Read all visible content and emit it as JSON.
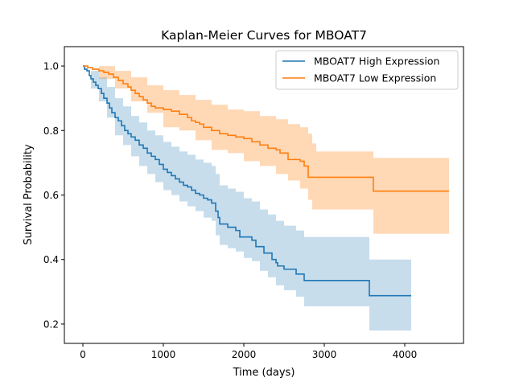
{
  "chart_data": {
    "type": "line",
    "title": "Kaplan-Meier Curves for MBOAT7",
    "xlabel": "Time (days)",
    "ylabel": "Survival Probability",
    "xlim": [
      -230,
      4730
    ],
    "ylim": [
      0.14,
      1.06
    ],
    "xticks": [
      0,
      1000,
      2000,
      3000,
      4000
    ],
    "yticks": [
      0.2,
      0.4,
      0.6,
      0.8,
      1.0
    ],
    "grid": false,
    "legend_position": "top-right",
    "series": [
      {
        "name": "MBOAT7 High Expression",
        "color": "#1f77b4",
        "ci_alpha": 0.25,
        "steps": [
          [
            0,
            1.0
          ],
          [
            20,
            0.99
          ],
          [
            50,
            0.985
          ],
          [
            80,
            0.97
          ],
          [
            100,
            0.96
          ],
          [
            130,
            0.95
          ],
          [
            160,
            0.94
          ],
          [
            190,
            0.93
          ],
          [
            230,
            0.915
          ],
          [
            260,
            0.9
          ],
          [
            300,
            0.885
          ],
          [
            330,
            0.87
          ],
          [
            360,
            0.855
          ],
          [
            400,
            0.84
          ],
          [
            440,
            0.83
          ],
          [
            480,
            0.815
          ],
          [
            520,
            0.8
          ],
          [
            560,
            0.79
          ],
          [
            600,
            0.78
          ],
          [
            650,
            0.77
          ],
          [
            700,
            0.755
          ],
          [
            750,
            0.745
          ],
          [
            800,
            0.73
          ],
          [
            850,
            0.72
          ],
          [
            900,
            0.71
          ],
          [
            950,
            0.695
          ],
          [
            1000,
            0.68
          ],
          [
            1050,
            0.67
          ],
          [
            1100,
            0.66
          ],
          [
            1150,
            0.65
          ],
          [
            1200,
            0.64
          ],
          [
            1250,
            0.63
          ],
          [
            1300,
            0.625
          ],
          [
            1350,
            0.615
          ],
          [
            1400,
            0.605
          ],
          [
            1450,
            0.6
          ],
          [
            1500,
            0.59
          ],
          [
            1550,
            0.585
          ],
          [
            1600,
            0.575
          ],
          [
            1650,
            0.55
          ],
          [
            1680,
            0.53
          ],
          [
            1700,
            0.51
          ],
          [
            1800,
            0.5
          ],
          [
            1900,
            0.49
          ],
          [
            1950,
            0.47
          ],
          [
            2100,
            0.46
          ],
          [
            2150,
            0.44
          ],
          [
            2250,
            0.42
          ],
          [
            2350,
            0.4
          ],
          [
            2400,
            0.39
          ],
          [
            2420,
            0.38
          ],
          [
            2500,
            0.37
          ],
          [
            2650,
            0.355
          ],
          [
            2750,
            0.335
          ],
          [
            3550,
            0.335
          ],
          [
            3560,
            0.288
          ],
          [
            4080,
            0.288
          ]
        ],
        "ci_upper": [
          [
            0,
            1.0
          ],
          [
            100,
            0.985
          ],
          [
            200,
            0.965
          ],
          [
            300,
            0.935
          ],
          [
            400,
            0.9
          ],
          [
            500,
            0.875
          ],
          [
            600,
            0.845
          ],
          [
            700,
            0.825
          ],
          [
            800,
            0.8
          ],
          [
            900,
            0.785
          ],
          [
            1000,
            0.765
          ],
          [
            1100,
            0.75
          ],
          [
            1200,
            0.735
          ],
          [
            1300,
            0.725
          ],
          [
            1400,
            0.71
          ],
          [
            1500,
            0.7
          ],
          [
            1600,
            0.69
          ],
          [
            1650,
            0.665
          ],
          [
            1700,
            0.63
          ],
          [
            1800,
            0.62
          ],
          [
            1900,
            0.61
          ],
          [
            2000,
            0.59
          ],
          [
            2100,
            0.58
          ],
          [
            2200,
            0.555
          ],
          [
            2300,
            0.54
          ],
          [
            2400,
            0.52
          ],
          [
            2500,
            0.505
          ],
          [
            2650,
            0.49
          ],
          [
            2750,
            0.47
          ],
          [
            3550,
            0.47
          ],
          [
            3560,
            0.4
          ],
          [
            4080,
            0.4
          ]
        ],
        "ci_lower": [
          [
            0,
            1.0
          ],
          [
            100,
            0.93
          ],
          [
            200,
            0.89
          ],
          [
            300,
            0.84
          ],
          [
            400,
            0.785
          ],
          [
            500,
            0.755
          ],
          [
            600,
            0.72
          ],
          [
            700,
            0.69
          ],
          [
            800,
            0.665
          ],
          [
            900,
            0.64
          ],
          [
            1000,
            0.615
          ],
          [
            1100,
            0.6
          ],
          [
            1200,
            0.58
          ],
          [
            1300,
            0.565
          ],
          [
            1400,
            0.55
          ],
          [
            1500,
            0.53
          ],
          [
            1600,
            0.52
          ],
          [
            1650,
            0.475
          ],
          [
            1700,
            0.445
          ],
          [
            1800,
            0.435
          ],
          [
            1900,
            0.425
          ],
          [
            2000,
            0.405
          ],
          [
            2100,
            0.395
          ],
          [
            2200,
            0.365
          ],
          [
            2300,
            0.345
          ],
          [
            2400,
            0.32
          ],
          [
            2500,
            0.305
          ],
          [
            2650,
            0.285
          ],
          [
            2750,
            0.255
          ],
          [
            3550,
            0.255
          ],
          [
            3560,
            0.18
          ],
          [
            4080,
            0.18
          ]
        ]
      },
      {
        "name": "MBOAT7 Low Expression",
        "color": "#ff7f0e",
        "ci_alpha": 0.3,
        "steps": [
          [
            0,
            1.0
          ],
          [
            60,
            0.995
          ],
          [
            120,
            0.99
          ],
          [
            200,
            0.985
          ],
          [
            260,
            0.98
          ],
          [
            320,
            0.975
          ],
          [
            380,
            0.965
          ],
          [
            440,
            0.955
          ],
          [
            500,
            0.945
          ],
          [
            560,
            0.935
          ],
          [
            600,
            0.925
          ],
          [
            650,
            0.915
          ],
          [
            700,
            0.905
          ],
          [
            750,
            0.895
          ],
          [
            800,
            0.885
          ],
          [
            850,
            0.875
          ],
          [
            900,
            0.87
          ],
          [
            1000,
            0.865
          ],
          [
            1100,
            0.86
          ],
          [
            1200,
            0.85
          ],
          [
            1300,
            0.84
          ],
          [
            1350,
            0.83
          ],
          [
            1400,
            0.825
          ],
          [
            1450,
            0.82
          ],
          [
            1500,
            0.81
          ],
          [
            1600,
            0.8
          ],
          [
            1700,
            0.79
          ],
          [
            1800,
            0.785
          ],
          [
            1900,
            0.78
          ],
          [
            2000,
            0.775
          ],
          [
            2100,
            0.765
          ],
          [
            2200,
            0.755
          ],
          [
            2300,
            0.745
          ],
          [
            2400,
            0.74
          ],
          [
            2450,
            0.73
          ],
          [
            2550,
            0.71
          ],
          [
            2700,
            0.705
          ],
          [
            2750,
            0.69
          ],
          [
            2800,
            0.655
          ],
          [
            3600,
            0.655
          ],
          [
            3610,
            0.612
          ],
          [
            4550,
            0.612
          ]
        ],
        "ci_upper": [
          [
            0,
            1.0
          ],
          [
            200,
            1.0
          ],
          [
            400,
            0.985
          ],
          [
            600,
            0.965
          ],
          [
            800,
            0.94
          ],
          [
            1000,
            0.925
          ],
          [
            1200,
            0.91
          ],
          [
            1400,
            0.895
          ],
          [
            1600,
            0.88
          ],
          [
            1800,
            0.865
          ],
          [
            2000,
            0.86
          ],
          [
            2200,
            0.845
          ],
          [
            2400,
            0.835
          ],
          [
            2550,
            0.82
          ],
          [
            2700,
            0.81
          ],
          [
            2800,
            0.79
          ],
          [
            2850,
            0.76
          ],
          [
            2900,
            0.735
          ],
          [
            3600,
            0.735
          ],
          [
            3610,
            0.715
          ],
          [
            4550,
            0.715
          ]
        ],
        "ci_lower": [
          [
            0,
            1.0
          ],
          [
            200,
            0.96
          ],
          [
            400,
            0.93
          ],
          [
            600,
            0.89
          ],
          [
            800,
            0.855
          ],
          [
            1000,
            0.81
          ],
          [
            1200,
            0.8
          ],
          [
            1400,
            0.77
          ],
          [
            1600,
            0.74
          ],
          [
            1800,
            0.73
          ],
          [
            2000,
            0.705
          ],
          [
            2200,
            0.69
          ],
          [
            2400,
            0.665
          ],
          [
            2550,
            0.645
          ],
          [
            2700,
            0.62
          ],
          [
            2800,
            0.585
          ],
          [
            2850,
            0.555
          ],
          [
            3600,
            0.555
          ],
          [
            3610,
            0.48
          ],
          [
            4550,
            0.48
          ]
        ]
      }
    ]
  }
}
